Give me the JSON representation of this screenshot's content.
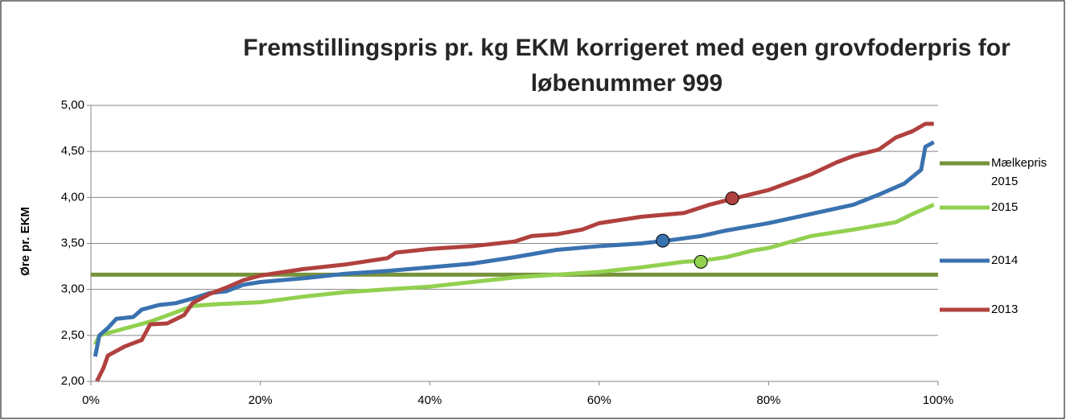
{
  "chart_data": {
    "type": "line",
    "title": "Fremstillingspris pr. kg EKM korrigeret med egen grovfoderpris for løbenummer 999",
    "y_label": "Øre pr. EKM",
    "xlim": [
      0,
      100
    ],
    "xticks": [
      {
        "value": 0,
        "label": "0%"
      },
      {
        "value": 20,
        "label": "20%"
      },
      {
        "value": 40,
        "label": "40%"
      },
      {
        "value": 60,
        "label": "60%"
      },
      {
        "value": 80,
        "label": "80%"
      },
      {
        "value": 100,
        "label": "100%"
      }
    ],
    "ylim": [
      2,
      5
    ],
    "yticks": [
      {
        "value": 2,
        "label": "2,00"
      },
      {
        "value": 2.5,
        "label": "2,50"
      },
      {
        "value": 3,
        "label": "3,00"
      },
      {
        "value": 3.5,
        "label": "3,50"
      },
      {
        "value": 4,
        "label": "4,00"
      },
      {
        "value": 4.5,
        "label": "4,50"
      },
      {
        "value": 5,
        "label": "5,00"
      }
    ],
    "grid": true,
    "legend": "right",
    "series": [
      {
        "name": "Mælkepris 2015",
        "color": "#77933c",
        "x": [
          0,
          100
        ],
        "values": [
          3.16,
          3.16
        ]
      },
      {
        "name": "2015",
        "color": "#92d050",
        "x": [
          0.5,
          1,
          3,
          5,
          7,
          10,
          12,
          15,
          20,
          25,
          30,
          35,
          40,
          45,
          50,
          55,
          60,
          65,
          70,
          72,
          75,
          78,
          80,
          85,
          90,
          95,
          97,
          99.5
        ],
        "values": [
          2.4,
          2.5,
          2.55,
          2.6,
          2.65,
          2.75,
          2.82,
          2.84,
          2.86,
          2.92,
          2.97,
          3.0,
          3.03,
          3.08,
          3.13,
          3.16,
          3.19,
          3.24,
          3.3,
          3.31,
          3.35,
          3.42,
          3.45,
          3.58,
          3.65,
          3.73,
          3.82,
          3.92
        ],
        "highlight": {
          "x": 72,
          "value": 3.3
        }
      },
      {
        "name": "2014",
        "color": "#3a72b0",
        "x": [
          0.5,
          1,
          2,
          3,
          5,
          6,
          8,
          10,
          12,
          14,
          16,
          18,
          20,
          25,
          30,
          35,
          40,
          45,
          50,
          55,
          60,
          65,
          68,
          72,
          75,
          80,
          85,
          90,
          93,
          96,
          98,
          98.5,
          99.5
        ],
        "values": [
          2.27,
          2.5,
          2.58,
          2.68,
          2.7,
          2.78,
          2.83,
          2.85,
          2.9,
          2.96,
          2.98,
          3.05,
          3.08,
          3.12,
          3.17,
          3.2,
          3.24,
          3.28,
          3.35,
          3.43,
          3.47,
          3.5,
          3.53,
          3.58,
          3.64,
          3.72,
          3.82,
          3.92,
          4.03,
          4.15,
          4.3,
          4.55,
          4.6
        ],
        "highlight": {
          "x": 67.5,
          "value": 3.53
        }
      },
      {
        "name": "2013",
        "color": "#b0413e",
        "x": [
          0.7,
          1.5,
          2,
          4,
          6,
          7,
          9,
          11,
          12,
          14,
          16,
          18,
          20,
          25,
          30,
          35,
          36,
          40,
          45,
          50,
          52,
          55,
          58,
          60,
          65,
          70,
          73,
          76,
          80,
          85,
          88,
          90,
          93,
          95,
          97,
          98.5,
          99.5
        ],
        "values": [
          2.0,
          2.15,
          2.28,
          2.38,
          2.45,
          2.62,
          2.63,
          2.72,
          2.85,
          2.95,
          3.02,
          3.1,
          3.15,
          3.22,
          3.27,
          3.34,
          3.4,
          3.44,
          3.47,
          3.52,
          3.58,
          3.6,
          3.65,
          3.72,
          3.79,
          3.83,
          3.92,
          3.99,
          4.08,
          4.25,
          4.38,
          4.45,
          4.52,
          4.65,
          4.72,
          4.8,
          4.8
        ],
        "highlight": {
          "x": 75.7,
          "value": 3.99
        }
      }
    ]
  }
}
